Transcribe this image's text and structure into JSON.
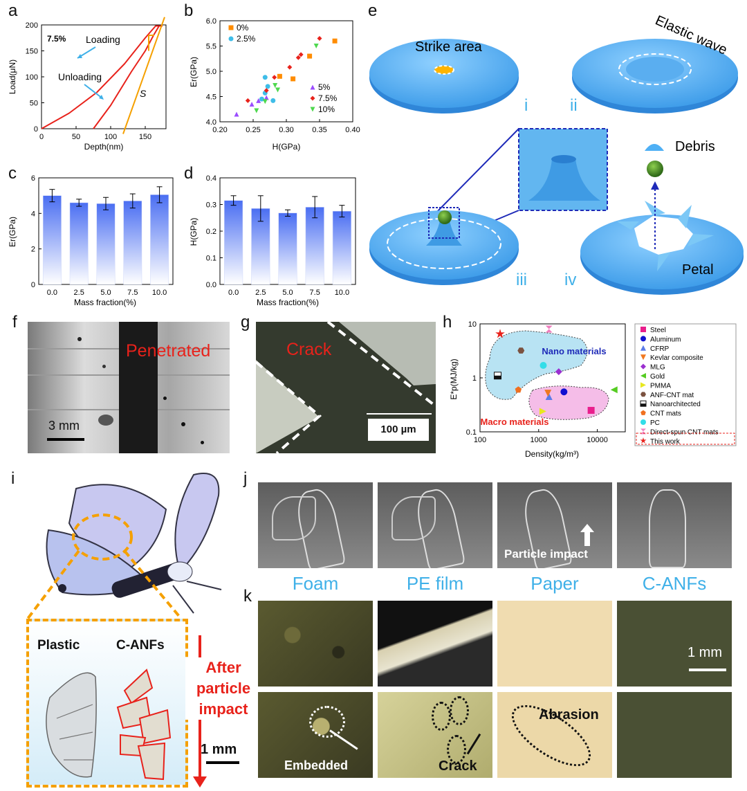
{
  "panel_labels": {
    "a": "a",
    "b": "b",
    "c": "c",
    "d": "d",
    "e": "e",
    "f": "f",
    "g": "g",
    "h": "h",
    "i": "i",
    "j": "j",
    "k": "k"
  },
  "chart_data": [
    {
      "id": "a",
      "type": "line",
      "xlabel": "Depth(nm)",
      "ylabel": "Load(μN)",
      "xlim": [
        0,
        180
      ],
      "ylim": [
        0,
        200
      ],
      "xticks": [
        "0",
        "50",
        "100",
        "150"
      ],
      "yticks": [
        "0",
        "50",
        "100",
        "150",
        "200"
      ],
      "annotations": {
        "conc": "7.5%",
        "loading": "Loading",
        "unloading": "Unloading",
        "s": "S"
      },
      "series": [
        {
          "name": "Loading",
          "x": [
            0,
            40,
            80,
            120,
            150,
            165,
            175
          ],
          "y": [
            0,
            30,
            70,
            125,
            175,
            198,
            198
          ]
        },
        {
          "name": "Unloading",
          "x": [
            75,
            100,
            130,
            150,
            162,
            170
          ],
          "y": [
            0,
            45,
            110,
            150,
            180,
            198
          ]
        },
        {
          "name": "S",
          "x": [
            118,
            178
          ],
          "y": [
            -10,
            215
          ]
        }
      ]
    },
    {
      "id": "b",
      "type": "scatter",
      "xlabel": "H(GPa)",
      "ylabel": "Er(GPa)",
      "xlim": [
        0.2,
        0.4
      ],
      "ylim": [
        4.0,
        6.0
      ],
      "xticks": [
        "0.20",
        "0.25",
        "0.30",
        "0.35",
        "0.40"
      ],
      "yticks": [
        "4.0",
        "4.5",
        "5.0",
        "5.5",
        "6.0"
      ],
      "series": [
        {
          "name": "0%",
          "color": "#ff8c00",
          "marker": "square",
          "x": [
            0.31,
            0.335,
            0.373,
            0.29
          ],
          "y": [
            4.85,
            5.3,
            5.6,
            4.9
          ]
        },
        {
          "name": "2.5%",
          "color": "#3fbde8",
          "marker": "circle",
          "x": [
            0.268,
            0.272,
            0.268,
            0.263,
            0.28
          ],
          "y": [
            4.88,
            4.7,
            4.57,
            4.45,
            4.42
          ]
        },
        {
          "name": "5%",
          "color": "#9b4dff",
          "marker": "triangle",
          "x": [
            0.225,
            0.248,
            0.258,
            0.27
          ],
          "y": [
            4.15,
            4.35,
            4.42,
            4.48
          ]
        },
        {
          "name": "7.5%",
          "color": "#e8221b",
          "marker": "diamond",
          "x": [
            0.242,
            0.27,
            0.282,
            0.305,
            0.318,
            0.322,
            0.35
          ],
          "y": [
            4.42,
            4.62,
            4.88,
            5.08,
            5.27,
            5.33,
            5.65
          ]
        },
        {
          "name": "10%",
          "color": "#4ed84e",
          "marker": "triangle-down",
          "x": [
            0.255,
            0.268,
            0.283,
            0.287,
            0.345
          ],
          "y": [
            4.22,
            4.4,
            4.72,
            4.63,
            5.5
          ]
        }
      ]
    },
    {
      "id": "c",
      "type": "bar",
      "xlabel": "Mass fraction(%)",
      "ylabel": "Er(GPa)",
      "categories": [
        "0.0",
        "2.5",
        "5.0",
        "7.5",
        "10.0"
      ],
      "values": [
        5.0,
        4.6,
        4.55,
        4.7,
        5.05
      ],
      "errors": [
        0.35,
        0.2,
        0.35,
        0.4,
        0.45
      ],
      "ylim": [
        0,
        6
      ],
      "yticks": [
        "0",
        "2",
        "4",
        "6"
      ]
    },
    {
      "id": "d",
      "type": "bar",
      "xlabel": "Mass fraction(%)",
      "ylabel": "H(GPa)",
      "categories": [
        "0.0",
        "2.5",
        "5.0",
        "7.5",
        "10.0"
      ],
      "values": [
        0.315,
        0.285,
        0.268,
        0.29,
        0.275
      ],
      "errors": [
        0.018,
        0.048,
        0.012,
        0.04,
        0.022
      ],
      "ylim": [
        0,
        0.4
      ],
      "yticks": [
        "0.0",
        "0.1",
        "0.2",
        "0.3",
        "0.4"
      ]
    },
    {
      "id": "h",
      "type": "scatter",
      "xlabel": "Density(kg/m³)",
      "ylabel": "E*p(MJ/kg)",
      "xlim_log": [
        100,
        30000
      ],
      "ylim_log": [
        0.1,
        10
      ],
      "xticks": [
        "100",
        "1000",
        "10000"
      ],
      "yticks": [
        "0.1",
        "1",
        "10"
      ],
      "region_labels": {
        "nano": "Nano materials",
        "macro": "Macro materials"
      },
      "series": [
        {
          "name": "Steel",
          "color": "#e91e8c",
          "marker": "square",
          "x": [
            7850
          ],
          "y": [
            0.25
          ]
        },
        {
          "name": "Aluminum",
          "color": "#1010d0",
          "marker": "circle",
          "x": [
            2700
          ],
          "y": [
            0.55
          ]
        },
        {
          "name": "CFRP",
          "color": "#5b7be8",
          "marker": "triangle",
          "x": [
            1500
          ],
          "y": [
            0.45
          ]
        },
        {
          "name": "Kevlar composite",
          "color": "#f07820",
          "marker": "triangle-down",
          "x": [
            1440
          ],
          "y": [
            0.52
          ]
        },
        {
          "name": "MLG",
          "color": "#9b30d0",
          "marker": "diamond",
          "x": [
            2200
          ],
          "y": [
            1.3
          ]
        },
        {
          "name": "Gold",
          "color": "#55cc22",
          "marker": "triangle-left",
          "x": [
            19300
          ],
          "y": [
            0.6
          ]
        },
        {
          "name": "PMMA",
          "color": "#e8e820",
          "marker": "triangle-right",
          "x": [
            1180
          ],
          "y": [
            0.24
          ]
        },
        {
          "name": "ANF-CNT mat",
          "color": "#7b5240",
          "marker": "hexagon",
          "x": [
            500
          ],
          "y": [
            3.2
          ]
        },
        {
          "name": "Nanoarchitected",
          "color": "#111111",
          "marker": "half-square",
          "x": [
            200
          ],
          "y": [
            1.1
          ]
        },
        {
          "name": "CNT mats",
          "color": "#f07020",
          "marker": "pentagon",
          "x": [
            450
          ],
          "y": [
            0.6
          ]
        },
        {
          "name": "PC",
          "color": "#33dde8",
          "marker": "circle",
          "x": [
            1200
          ],
          "y": [
            1.7
          ]
        },
        {
          "name": "Direct-spun CNT mats",
          "color": "#f080c0",
          "marker": "triangle-hourglass",
          "x": [
            1500
          ],
          "y": [
            8.0
          ]
        },
        {
          "name": "This work",
          "color": "#e8221b",
          "marker": "star",
          "x": [
            220
          ],
          "y": [
            6.5
          ]
        }
      ]
    }
  ],
  "panel_e": {
    "strike_area": "Strike area",
    "elastic_wave": "Elastic wave",
    "debris": "Debris",
    "petal": "Petal",
    "stages": [
      "i",
      "ii",
      "iii",
      "iv"
    ]
  },
  "panel_f": {
    "label": "Penetrated",
    "scale": "3 mm"
  },
  "panel_g": {
    "label": "Crack",
    "scale": "100 µm"
  },
  "panel_i": {
    "plastic": "Plastic",
    "canf": "C-ANFs",
    "scale": "1 mm"
  },
  "panel_j": {
    "label": "Particle impact"
  },
  "panel_k": {
    "columns": [
      "Foam",
      "PE film",
      "Paper",
      "C-ANFs"
    ],
    "side": [
      "After",
      "particle",
      "impact"
    ],
    "scale": "1 mm",
    "annotations": {
      "embedded": "Embedded",
      "crack": "Crack",
      "abrasion": "Abrasion"
    }
  },
  "colors": {
    "accent_blue": "#3fb0e8",
    "red": "#e8221b",
    "orange": "#f5a000",
    "bar_top": "#4a6ef2"
  }
}
